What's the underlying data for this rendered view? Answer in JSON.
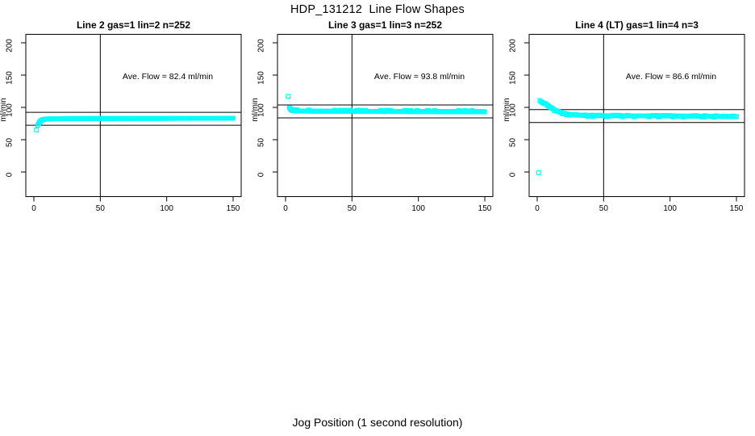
{
  "figure": {
    "title": "HDP_131212  Line Flow Shapes",
    "xlabel": "Jog Position (1 second resolution)",
    "background": "#ffffff",
    "point_color": "#00FFFF",
    "line_color": "#000000"
  },
  "chart_data": [
    {
      "id": "line-2",
      "type": "scatter",
      "title": "Line 2 gas=1 lin=2 n=252",
      "annotation": "Ave. Flow =  82.4  ml/min",
      "ave_flow_ml_min": 82.4,
      "n": 252,
      "ylabel": "ml/min",
      "xlim": [
        0,
        150
      ],
      "ylim": [
        0,
        200
      ],
      "xticks": [
        0,
        50,
        100,
        150
      ],
      "yticks": [
        0,
        50,
        100,
        150,
        200
      ],
      "vline_x": 50,
      "hlines_y": [
        92.4,
        72.4
      ],
      "marker": {
        "shape": "open-square",
        "color": "#00FFFF"
      },
      "x_start": 3,
      "x_end": 150,
      "x_step": 0.59,
      "profile": [
        [
          3,
          72.5
        ],
        [
          4,
          76.5
        ],
        [
          5,
          79
        ],
        [
          6,
          80.5
        ],
        [
          8,
          81.8
        ],
        [
          12,
          82.3
        ],
        [
          20,
          82.6
        ],
        [
          50,
          82.8
        ],
        [
          100,
          83
        ],
        [
          150,
          83.2
        ]
      ],
      "outliers": [
        [
          2,
          65
        ]
      ],
      "jitter": [
        0,
        0
      ]
    },
    {
      "id": "line-3",
      "type": "scatter",
      "title": "Line 3 gas=1 lin=3 n=252",
      "annotation": "Ave. Flow =  93.8  ml/min",
      "ave_flow_ml_min": 93.8,
      "n": 252,
      "ylabel": "ml/min",
      "xlim": [
        0,
        150
      ],
      "ylim": [
        0,
        200
      ],
      "xticks": [
        0,
        50,
        100,
        150
      ],
      "yticks": [
        0,
        50,
        100,
        150,
        200
      ],
      "vline_x": 50,
      "hlines_y": [
        103.8,
        83.8
      ],
      "marker": {
        "shape": "open-square",
        "color": "#00FFFF"
      },
      "x_start": 3,
      "x_end": 150,
      "x_step": 0.59,
      "profile": [
        [
          3,
          99.5
        ],
        [
          4,
          96.2
        ],
        [
          5,
          95.2
        ],
        [
          7,
          94.6
        ],
        [
          10,
          94.3
        ],
        [
          30,
          94.1
        ],
        [
          60,
          93.8
        ],
        [
          100,
          93.6
        ],
        [
          150,
          93.3
        ]
      ],
      "outliers": [
        [
          2,
          117
        ]
      ],
      "jitter": [
        1.6,
        0.3
      ]
    },
    {
      "id": "line-4-lt",
      "type": "scatter",
      "title": "Line 4 (LT) gas=1 lin=4 n=3",
      "annotation": "Ave. Flow =  86.6  ml/min",
      "ave_flow_ml_min": 86.6,
      "n": 3,
      "ylabel": "ml/min",
      "xlim": [
        0,
        150
      ],
      "ylim": [
        0,
        200
      ],
      "xticks": [
        0,
        50,
        100,
        150
      ],
      "yticks": [
        0,
        50,
        100,
        150,
        200
      ],
      "vline_x": 50,
      "hlines_y": [
        96.6,
        76.6
      ],
      "marker": {
        "shape": "open-square",
        "color": "#00FFFF"
      },
      "x_start": 2,
      "x_end": 150,
      "x_step": 1,
      "profile": [
        [
          2,
          110.5
        ],
        [
          3,
          110
        ],
        [
          4,
          108.8
        ],
        [
          5,
          107.4
        ],
        [
          6,
          105.9
        ],
        [
          7,
          104.4
        ],
        [
          8,
          102.9
        ],
        [
          9,
          101.4
        ],
        [
          10,
          100
        ],
        [
          12,
          97.4
        ],
        [
          14,
          95.2
        ],
        [
          16,
          93.4
        ],
        [
          18,
          92
        ],
        [
          20,
          90.8
        ],
        [
          23,
          89.6
        ],
        [
          26,
          88.8
        ],
        [
          30,
          88.1
        ],
        [
          35,
          87.6
        ],
        [
          40,
          87.3
        ],
        [
          50,
          87
        ],
        [
          70,
          86.9
        ],
        [
          100,
          86.7
        ],
        [
          120,
          86.4
        ],
        [
          140,
          86
        ],
        [
          150,
          85.7
        ]
      ],
      "outliers": [
        [
          1,
          -1
        ]
      ],
      "jitter": [
        0.8,
        1.4
      ]
    }
  ]
}
